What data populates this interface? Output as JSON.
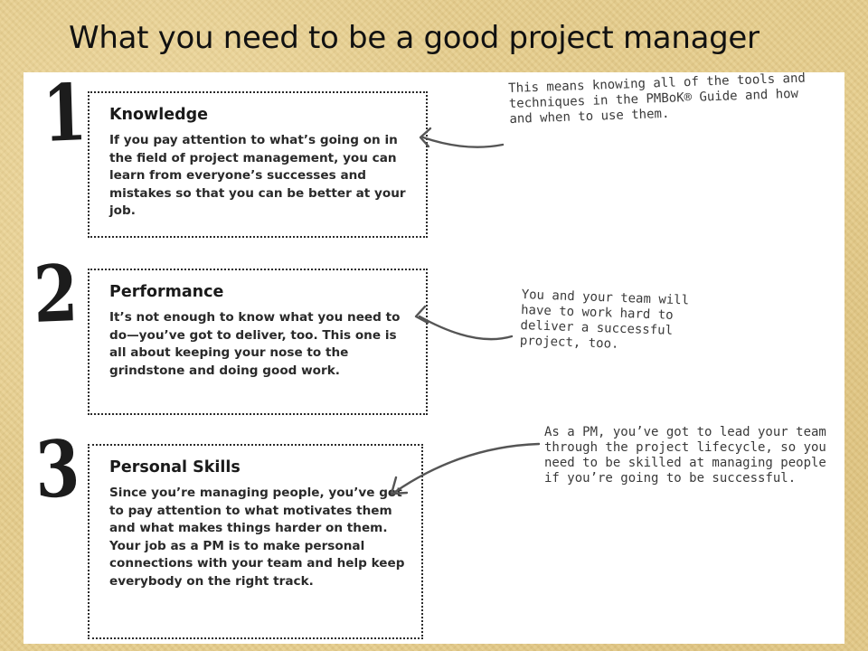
{
  "title": "What you need to be a good project manager",
  "steps": [
    {
      "number": "1",
      "heading": "Knowledge",
      "body": "If you pay attention to what’s going on in the field of project management, you can learn from everyone’s successes and mistakes so that you can be better at your job.",
      "note": "This means knowing all of the tools and techniques in the PMBoK® Guide and how and when to use them."
    },
    {
      "number": "2",
      "heading": "Performance",
      "body": "It’s not enough to know what you need to do—you’ve got to deliver, too. This one is all about keeping your nose to the grindstone and doing good work.",
      "note": "You and your team will have to work hard to deliver a successful project, too."
    },
    {
      "number": "3",
      "heading": "Personal Skills",
      "body": "Since you’re managing people, you’ve got to pay attention to what motivates them and what makes things harder on them. Your job as a PM is to make personal connections with your team and help keep everybody on the right track.",
      "note": "As a PM, you’ve got to lead your team through the project lifecycle, so you need to be skilled at managing people if you’re going to be successful."
    }
  ]
}
